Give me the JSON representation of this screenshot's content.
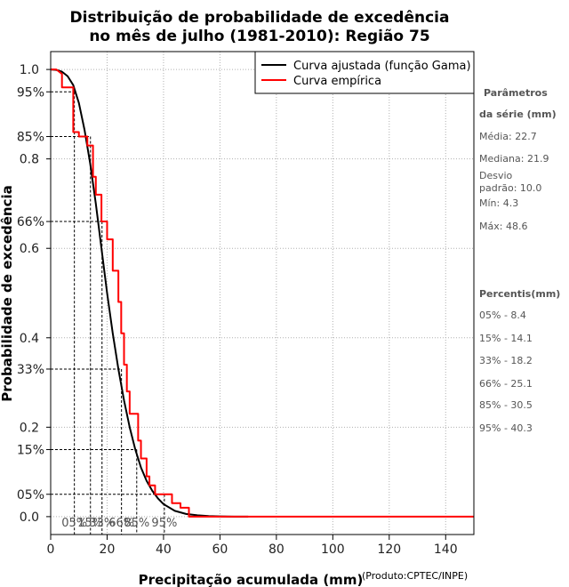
{
  "chart_data": {
    "type": "line",
    "title_line1": "Distribuição de probabilidade de excedência",
    "title_line2": "no mês de julho (1981-2010): Região 75",
    "xlabel": "Precipitação acumulada (mm)",
    "ylabel": "Probabilidade de excedência",
    "credit": "(Produto:CPTEC/INPE)",
    "xlim": [
      0,
      150
    ],
    "ylim": [
      -0.04,
      1.04
    ],
    "x_ticks": [
      "0",
      "20",
      "40",
      "60",
      "80",
      "100",
      "120",
      "140"
    ],
    "x_tick_values": [
      0,
      20,
      40,
      60,
      80,
      100,
      120,
      140
    ],
    "y_ticks": [
      "0.0",
      "0.2",
      "0.4",
      "0.6",
      "0.8",
      "1.0"
    ],
    "y_tick_values": [
      0.0,
      0.2,
      0.4,
      0.6,
      0.8,
      1.0
    ],
    "pct_y_ticks": [
      "05%",
      "15%",
      "33%",
      "66%",
      "85%",
      "95%"
    ],
    "pct_y_values": [
      0.05,
      0.15,
      0.33,
      0.66,
      0.85,
      0.95
    ],
    "pct_x_labels": [
      "05%",
      "15%",
      "33%",
      "66%",
      "85%",
      "95%"
    ],
    "percentile_points": [
      {
        "p": 0.05,
        "x": 40.3
      },
      {
        "p": 0.15,
        "x": 30.5
      },
      {
        "p": 0.33,
        "x": 25.1
      },
      {
        "p": 0.66,
        "x": 18.2
      },
      {
        "p": 0.85,
        "x": 14.1
      },
      {
        "p": 0.95,
        "x": 8.4
      }
    ],
    "grid": true,
    "legend_position": "top-right",
    "series": [
      {
        "name": "Curva ajustada (função Gama)",
        "color": "#000000",
        "x": [
          0,
          2,
          4,
          6,
          8,
          10,
          12,
          14,
          16,
          18,
          20,
          22,
          24,
          26,
          28,
          30,
          32,
          34,
          36,
          38,
          40,
          44,
          48,
          52,
          56,
          60,
          65,
          70
        ],
        "y": [
          1.0,
          0.999,
          0.995,
          0.985,
          0.965,
          0.925,
          0.865,
          0.79,
          0.7,
          0.6,
          0.5,
          0.41,
          0.33,
          0.26,
          0.2,
          0.15,
          0.11,
          0.08,
          0.058,
          0.041,
          0.028,
          0.013,
          0.006,
          0.003,
          0.0012,
          0.0005,
          0.0001,
          0.0
        ]
      },
      {
        "name": "Curva empírica",
        "color": "#ff0000",
        "x": [
          0,
          2,
          4,
          4,
          8,
          8,
          10,
          10,
          13,
          13,
          15,
          15,
          16,
          16,
          18,
          18,
          20,
          20,
          22,
          22,
          24,
          24,
          25,
          25,
          26,
          26,
          27,
          27,
          28,
          28,
          29,
          29,
          31,
          31,
          32,
          32,
          34,
          34,
          35,
          35,
          37,
          37,
          40,
          40,
          43,
          43,
          46,
          46,
          49,
          49,
          150
        ],
        "y": [
          1.0,
          1.0,
          0.99,
          0.96,
          0.96,
          0.86,
          0.86,
          0.85,
          0.85,
          0.83,
          0.83,
          0.76,
          0.76,
          0.72,
          0.72,
          0.66,
          0.66,
          0.62,
          0.62,
          0.55,
          0.55,
          0.48,
          0.48,
          0.41,
          0.41,
          0.34,
          0.34,
          0.28,
          0.28,
          0.23,
          0.23,
          0.23,
          0.23,
          0.17,
          0.17,
          0.13,
          0.13,
          0.09,
          0.09,
          0.07,
          0.07,
          0.05,
          0.05,
          0.05,
          0.05,
          0.03,
          0.03,
          0.02,
          0.02,
          0.0,
          0.0
        ]
      }
    ]
  },
  "side_panel": {
    "params_head1": "Parâmetros",
    "params_head2": "da série (mm)",
    "media": "Média: 22.7",
    "mediana": "Mediana: 21.9",
    "desvio1": "Desvio",
    "desvio2": "padrão: 10.0",
    "min": "Mín: 4.3",
    "max": "Máx: 48.6",
    "percentis_head": "Percentis(mm)",
    "p05": "05% - 8.4",
    "p15": "15% - 14.1",
    "p33": "33% - 18.2",
    "p66": "66% - 25.1",
    "p85": "85% - 30.5",
    "p95": "95% - 40.3"
  }
}
